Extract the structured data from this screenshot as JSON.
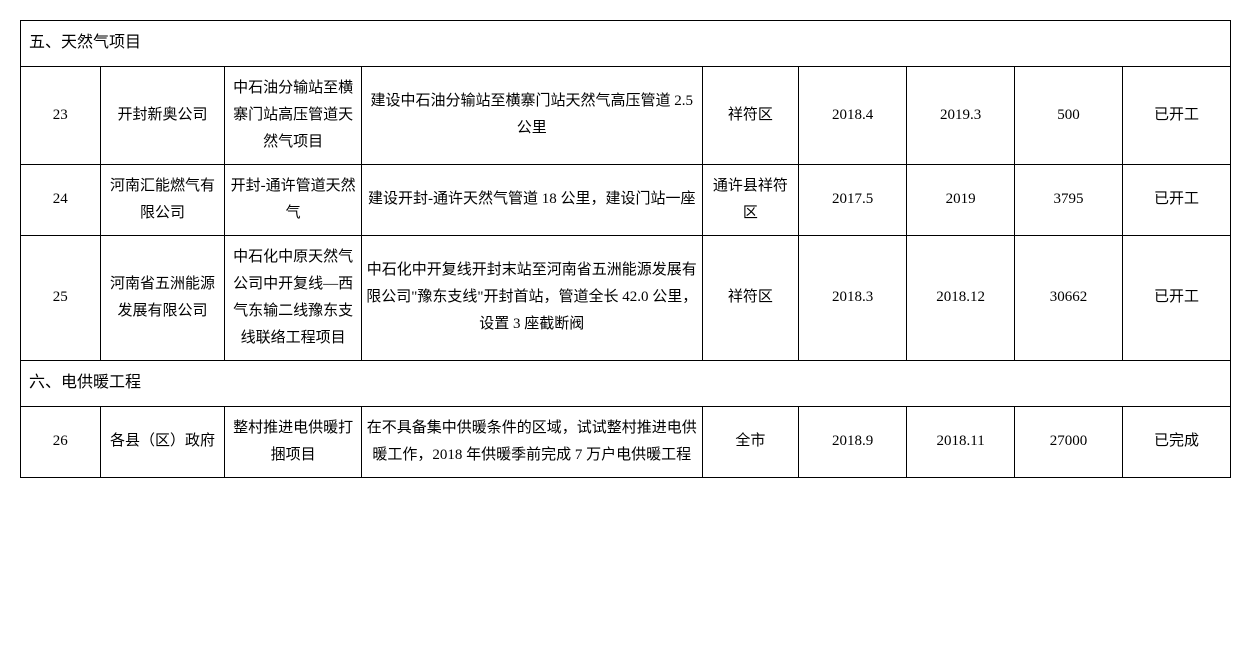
{
  "sections": [
    {
      "title": "五、天然气项目"
    },
    {
      "title": "六、电供暖工程"
    }
  ],
  "rows": [
    {
      "no": "23",
      "org": "开封新奥公司",
      "name": "中石油分输站至横寨门站高压管道天然气项目",
      "desc": "建设中石油分输站至横寨门站天然气高压管道 2.5 公里",
      "loc": "祥符区",
      "start": "2018.4",
      "end": "2019.3",
      "amount": "500",
      "status": "已开工"
    },
    {
      "no": "24",
      "org": "河南汇能燃气有限公司",
      "name": "开封-通许管道天然气",
      "desc": "建设开封-通许天然气管道 18 公里，建设门站一座",
      "loc": "通许县祥符区",
      "start": "2017.5",
      "end": "2019",
      "amount": "3795",
      "status": "已开工"
    },
    {
      "no": "25",
      "org": "河南省五洲能源发展有限公司",
      "name": "中石化中原天然气公司中开复线—西气东输二线豫东支线联络工程项目",
      "desc": "中石化中开复线开封末站至河南省五洲能源发展有限公司\"豫东支线\"开封首站，管道全长 42.0 公里，设置 3 座截断阀",
      "loc": "祥符区",
      "start": "2018.3",
      "end": "2018.12",
      "amount": "30662",
      "status": "已开工"
    },
    {
      "no": "26",
      "org": "各县（区）政府",
      "name": "整村推进电供暖打捆项目",
      "desc": "在不具备集中供暖条件的区域，试试整村推进电供暖工作，2018 年供暖季前完成 7 万户电供暖工程",
      "loc": "全市",
      "start": "2018.9",
      "end": "2018.11",
      "amount": "27000",
      "status": "已完成"
    }
  ]
}
